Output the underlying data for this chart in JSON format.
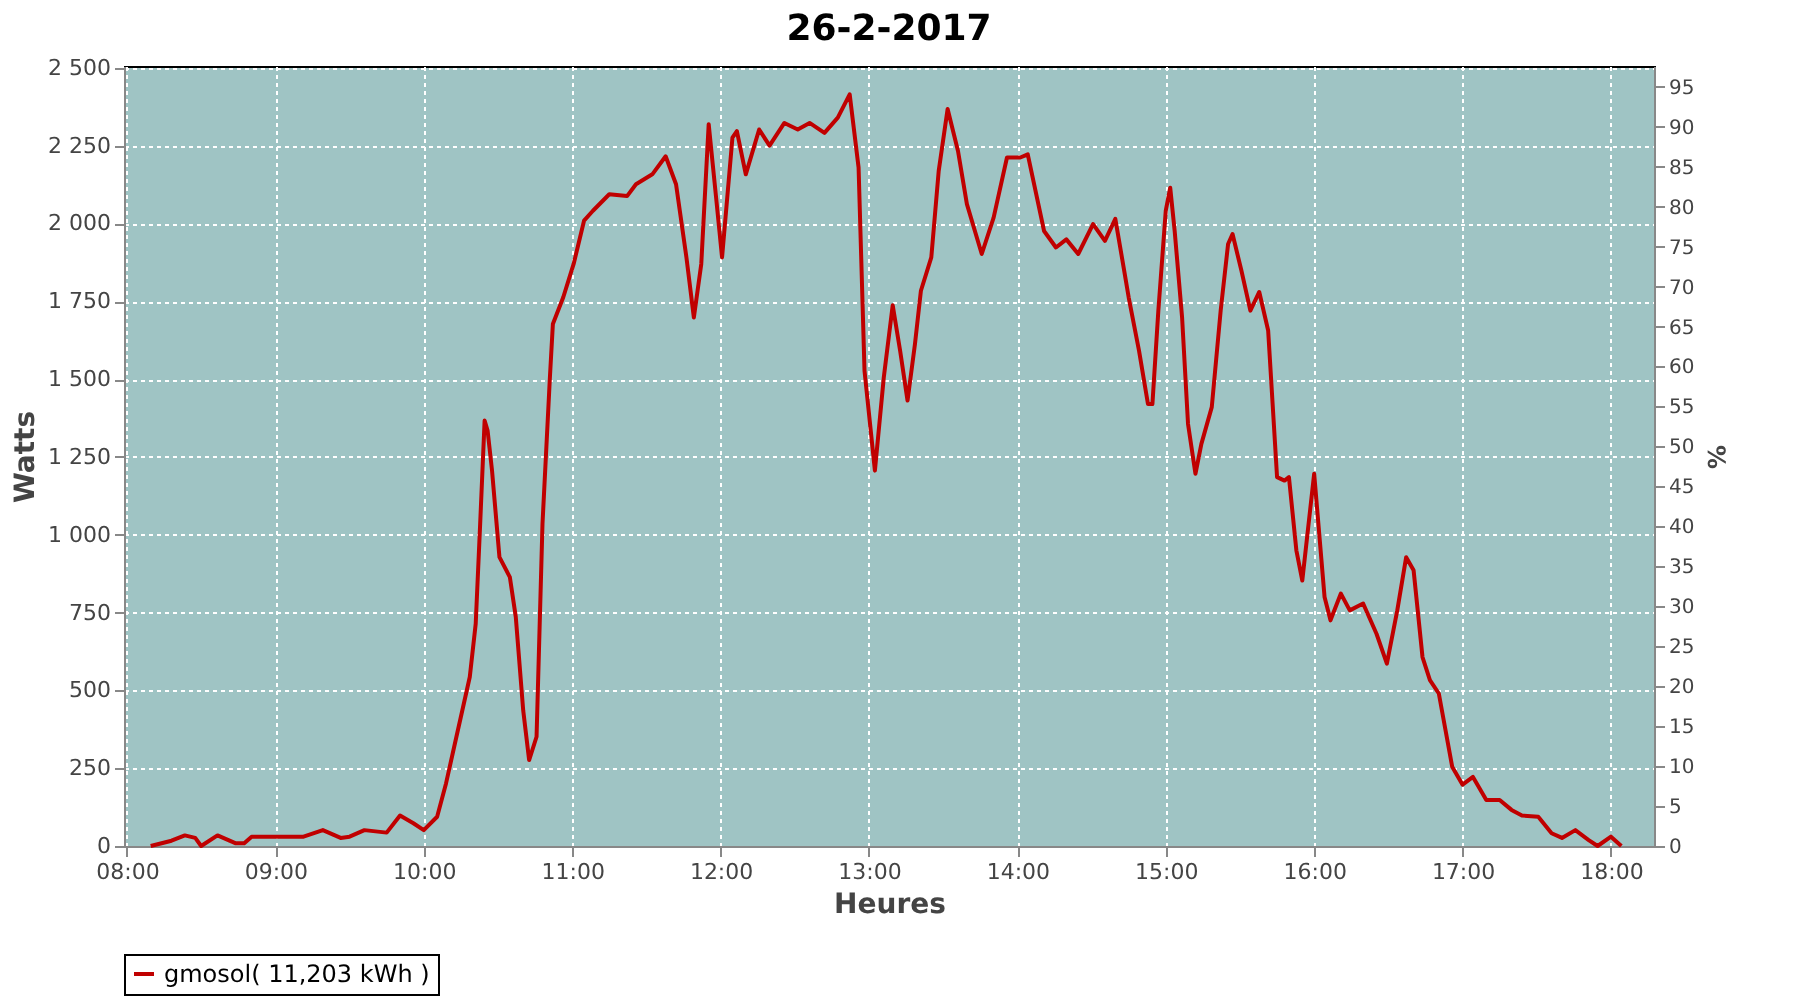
{
  "chart_data": {
    "type": "line",
    "title": "26-2-2017",
    "xlabel": "Heures",
    "ylabel": "Watts",
    "y2label": "%",
    "x": [
      8.16,
      8.3,
      8.39,
      8.46,
      8.5,
      8.61,
      8.73,
      8.79,
      8.84,
      9.19,
      9.32,
      9.44,
      9.5,
      9.6,
      9.75,
      9.84,
      9.93,
      10.0,
      10.09,
      10.15,
      10.22,
      10.26,
      10.31,
      10.35,
      10.38,
      10.41,
      10.43,
      10.46,
      10.51,
      10.58,
      10.62,
      10.67,
      10.71,
      10.76,
      10.8,
      10.85,
      10.87,
      10.94,
      11.01,
      11.08,
      11.14,
      11.25,
      11.37,
      11.43,
      11.54,
      11.63,
      11.7,
      11.77,
      11.82,
      11.87,
      11.92,
      11.97,
      12.01,
      12.08,
      12.11,
      12.17,
      12.26,
      12.33,
      12.43,
      12.52,
      12.6,
      12.7,
      12.79,
      12.87,
      12.93,
      12.97,
      13.04,
      13.1,
      13.16,
      13.21,
      13.26,
      13.31,
      13.35,
      13.42,
      13.47,
      13.53,
      13.6,
      13.66,
      13.76,
      13.84,
      13.93,
      14.02,
      14.07,
      14.18,
      14.26,
      14.33,
      14.41,
      14.51,
      14.59,
      14.66,
      14.72,
      14.75,
      14.82,
      14.88,
      14.91,
      14.95,
      15.0,
      15.03,
      15.06,
      15.11,
      15.15,
      15.2,
      15.24,
      15.31,
      15.37,
      15.42,
      15.45,
      15.51,
      15.57,
      15.63,
      15.69,
      15.75,
      15.8,
      15.83,
      15.88,
      15.92,
      16.0,
      16.07,
      16.11,
      16.18,
      16.24,
      16.33,
      16.42,
      16.49,
      16.56,
      16.62,
      16.67,
      16.73,
      16.78,
      16.84,
      16.93,
      17.0,
      17.07,
      17.16,
      17.25,
      17.33,
      17.4,
      17.51,
      17.6,
      17.67,
      17.76,
      17.85,
      17.91,
      18.0,
      18.07
    ],
    "series": [
      {
        "name": "gmosol( 11,203 kWh )",
        "color": "#c00000",
        "values": [
          0,
          17,
          34,
          26,
          0,
          34,
          9,
          9,
          30,
          30,
          51,
          26,
          30,
          51,
          43,
          98,
          73,
          51,
          94,
          201,
          351,
          436,
          543,
          714,
          1035,
          1367,
          1335,
          1206,
          928,
          864,
          736,
          436,
          276,
          351,
          1035,
          1506,
          1677,
          1763,
          1870,
          2009,
          2041,
          2094,
          2088,
          2126,
          2158,
          2216,
          2126,
          1891,
          1698,
          1870,
          2319,
          2083,
          1891,
          2276,
          2297,
          2158,
          2302,
          2250,
          2323,
          2302,
          2323,
          2291,
          2340,
          2415,
          2180,
          1527,
          1206,
          1506,
          1737,
          1591,
          1431,
          1613,
          1784,
          1891,
          2169,
          2368,
          2233,
          2062,
          1902,
          2019,
          2212,
          2212,
          2222,
          1976,
          1923,
          1949,
          1902,
          1998,
          1944,
          2015,
          1848,
          1763,
          1591,
          1420,
          1420,
          1720,
          2041,
          2115,
          1976,
          1698,
          1356,
          1196,
          1292,
          1410,
          1720,
          1934,
          1966,
          1848,
          1720,
          1780,
          1656,
          1185,
          1174,
          1185,
          950,
          853,
          1196,
          800,
          725,
          811,
          757,
          779,
          682,
          586,
          757,
          928,
          886,
          607,
          533,
          490,
          255,
          197,
          222,
          148,
          148,
          116,
          98,
          94,
          41,
          26,
          51,
          19,
          0,
          30,
          0
        ]
      }
    ],
    "xlim": [
      7.98,
      18.29
    ],
    "xticks": [
      {
        "value": 8,
        "label": "08:00"
      },
      {
        "value": 9,
        "label": "09:00"
      },
      {
        "value": 10,
        "label": "10:00"
      },
      {
        "value": 11,
        "label": "11:00"
      },
      {
        "value": 12,
        "label": "12:00"
      },
      {
        "value": 13,
        "label": "13:00"
      },
      {
        "value": 14,
        "label": "14:00"
      },
      {
        "value": 15,
        "label": "15:00"
      },
      {
        "value": 16,
        "label": "16:00"
      },
      {
        "value": 17,
        "label": "17:00"
      },
      {
        "value": 18,
        "label": "18:00"
      }
    ],
    "ylim": [
      0,
      2506
    ],
    "yticks": [
      0,
      250,
      500,
      750,
      {
        "value": 1000,
        "label": "1 000"
      },
      {
        "value": 1250,
        "label": "1 250"
      },
      {
        "value": 1500,
        "label": "1 500"
      },
      {
        "value": 1750,
        "label": "1 750"
      },
      {
        "value": 2000,
        "label": "2 000"
      },
      {
        "value": 2250,
        "label": "2 250"
      },
      {
        "value": 2500,
        "label": "2 500"
      }
    ],
    "y2lim": [
      0,
      97.6
    ],
    "y2ticks": [
      0,
      5,
      10,
      15,
      20,
      25,
      30,
      35,
      40,
      45,
      50,
      55,
      60,
      65,
      70,
      75,
      80,
      85,
      90,
      95
    ],
    "grid": true,
    "legend": "bottom",
    "marker": "none",
    "line_style": "solid"
  }
}
